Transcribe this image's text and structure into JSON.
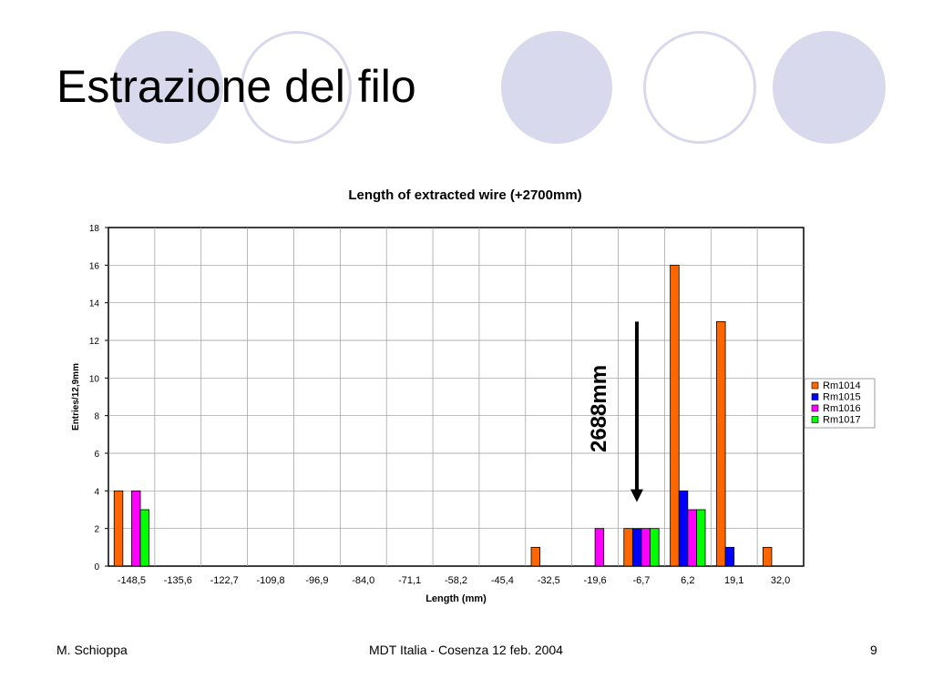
{
  "slide": {
    "title": "Estrazione del filo",
    "footer_left": "M. Schioppa",
    "footer_center": "MDT Italia - Cosenza 12 feb. 2004",
    "footer_right": "9"
  },
  "colors": {
    "circle": "#d9d9ee"
  },
  "chart_data": {
    "type": "bar",
    "title": "Length of extracted wire (+2700mm)",
    "xlabel": "Length (mm)",
    "ylabel": "Entries/12,9mm",
    "ylim": [
      0,
      18
    ],
    "yticks": [
      0,
      2,
      4,
      6,
      8,
      10,
      12,
      14,
      16,
      18
    ],
    "grid": true,
    "legend_position": "right",
    "categories": [
      "-148,5",
      "-135,6",
      "-122,7",
      "-109,8",
      "-96,9",
      "-84,0",
      "-71,1",
      "-58,2",
      "-45,4",
      "-32,5",
      "-19,6",
      "-6,7",
      "6,2",
      "19,1",
      "32,0"
    ],
    "series": [
      {
        "name": "Rm1014",
        "color": "#ff6600",
        "values": [
          4,
          0,
          0,
          0,
          0,
          0,
          0,
          0,
          0,
          1,
          0,
          2,
          16,
          13,
          1
        ]
      },
      {
        "name": "Rm1015",
        "color": "#0000ff",
        "values": [
          0,
          0,
          0,
          0,
          0,
          0,
          0,
          0,
          0,
          0,
          0,
          2,
          4,
          1,
          0
        ]
      },
      {
        "name": "Rm1016",
        "color": "#ff00ff",
        "values": [
          4,
          0,
          0,
          0,
          0,
          0,
          0,
          0,
          0,
          0,
          2,
          2,
          3,
          0,
          0
        ]
      },
      {
        "name": "Rm1017",
        "color": "#00ff00",
        "values": [
          3,
          0,
          0,
          0,
          0,
          0,
          0,
          0,
          0,
          0,
          0,
          2,
          3,
          0,
          0
        ]
      }
    ],
    "annotation": {
      "text": "2688mm",
      "x": "-6,7",
      "y_from": 13,
      "y_to": 3.5
    }
  }
}
